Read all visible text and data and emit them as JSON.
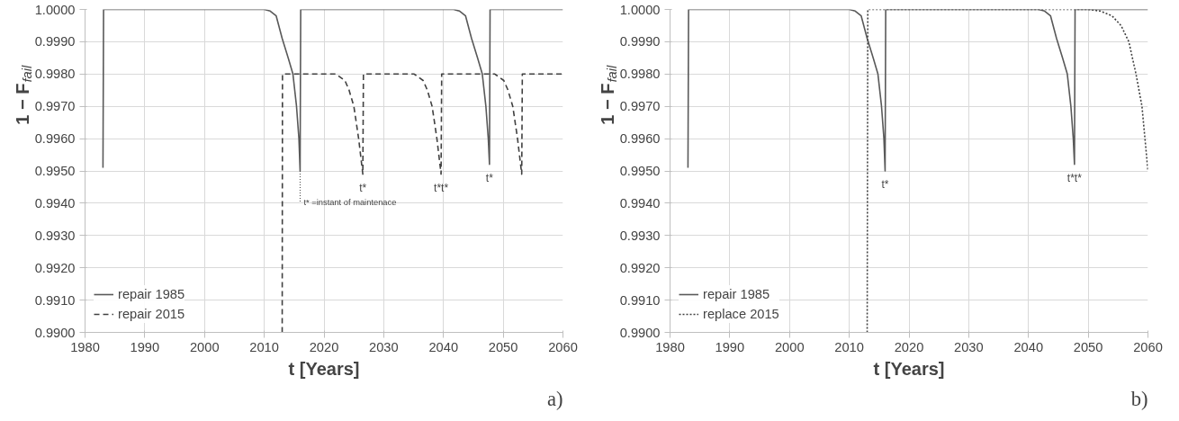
{
  "chart_data": [
    {
      "type": "line",
      "xlabel": "t [Years]",
      "ylabel": "1 − F$_{fail}$",
      "xlim": [
        1980,
        2060
      ],
      "ylim": [
        0.99,
        1.0
      ],
      "xticks": [
        1980,
        1990,
        2000,
        2010,
        2020,
        2030,
        2040,
        2050,
        2060
      ],
      "yticks": [
        {
          "value": 0.99,
          "label": "0.9900"
        },
        {
          "value": 0.991,
          "label": "0.9910"
        },
        {
          "value": 0.992,
          "label": "0.9920"
        },
        {
          "value": 0.993,
          "label": "0.9930"
        },
        {
          "value": 0.994,
          "label": "0.9940"
        },
        {
          "value": 0.995,
          "label": "0.9950"
        },
        {
          "value": 0.996,
          "label": "0.9960"
        },
        {
          "value": 0.997,
          "label": "0.9970"
        },
        {
          "value": 0.998,
          "label": "0.9980"
        },
        {
          "value": 0.999,
          "label": "0.9990"
        },
        {
          "value": 1.0,
          "label": "1.0000"
        }
      ],
      "grid": true,
      "legend": "bottom left",
      "marker": "none",
      "series": [
        {
          "name": "repair 1985",
          "color": "#595959",
          "line_style": "solid",
          "x": [
            1983,
            1983.1,
            2010,
            2011,
            2012,
            2013,
            2014,
            2014.8,
            2015.4,
            2015.8,
            2016,
            2016.1,
            2041.7,
            2042.7,
            2043.7,
            2044.7,
            2045.7,
            2046.5,
            2047.1,
            2047.5,
            2047.7,
            2047.8,
            2060
          ],
          "values": [
            0.9951,
            1.0,
            1.0,
            0.99995,
            0.9998,
            0.9991,
            0.9985,
            0.998,
            0.997,
            0.996,
            0.995,
            1.0,
            1.0,
            0.99995,
            0.9998,
            0.9991,
            0.9985,
            0.998,
            0.997,
            0.996,
            0.9952,
            1.0,
            1.0
          ]
        },
        {
          "name": "repair 2015",
          "color": "#404040",
          "line_style": "dashed",
          "x": [
            2013,
            2013.05,
            2022,
            2023.5,
            2024.2,
            2025,
            2025.8,
            2026.5,
            2026.6,
            2035.1,
            2036.6,
            2037.3,
            2038.1,
            2038.9,
            2039.6,
            2039.7,
            2048.6,
            2050.1,
            2050.8,
            2051.6,
            2052.4,
            2053.1,
            2053.2,
            2060
          ],
          "values": [
            0.99,
            0.998,
            0.998,
            0.9978,
            0.9975,
            0.997,
            0.996,
            0.9949,
            0.998,
            0.998,
            0.9978,
            0.9975,
            0.997,
            0.996,
            0.9949,
            0.998,
            0.998,
            0.9978,
            0.9975,
            0.997,
            0.996,
            0.9949,
            0.998,
            0.998
          ]
        }
      ],
      "annotations": [
        {
          "text": "t*",
          "x": 2026.5,
          "y": 0.9949
        },
        {
          "text": "t*t*",
          "x": 2039.6,
          "y": 0.9949
        },
        {
          "text": "t*",
          "x": 2047.7,
          "y": 0.9952
        },
        {
          "text": "t* =instant of maintenace",
          "x": 2016,
          "y": 0.995
        },
        "a)"
      ]
    },
    {
      "type": "line",
      "xlabel": "t [Years]",
      "ylabel": "1 − F$_{fail}$",
      "xlim": [
        1980,
        2060
      ],
      "ylim": [
        0.99,
        1.0
      ],
      "xticks": [
        1980,
        1990,
        2000,
        2010,
        2020,
        2030,
        2040,
        2050,
        2060
      ],
      "yticks": [
        {
          "value": 0.99,
          "label": "0.9900"
        },
        {
          "value": 0.991,
          "label": "0.9910"
        },
        {
          "value": 0.992,
          "label": "0.9920"
        },
        {
          "value": 0.993,
          "label": "0.9930"
        },
        {
          "value": 0.994,
          "label": "0.9940"
        },
        {
          "value": 0.995,
          "label": "0.9950"
        },
        {
          "value": 0.996,
          "label": "0.9960"
        },
        {
          "value": 0.997,
          "label": "0.9970"
        },
        {
          "value": 0.998,
          "label": "0.9980"
        },
        {
          "value": 0.999,
          "label": "0.9990"
        },
        {
          "value": 1.0,
          "label": "1.0000"
        }
      ],
      "grid": true,
      "legend": "bottom left",
      "marker": "none",
      "series": [
        {
          "name": "repair 1985",
          "color": "#595959",
          "line_style": "solid",
          "x": [
            1983,
            1983.1,
            2010,
            2011,
            2012,
            2013,
            2014,
            2014.8,
            2015.4,
            2015.8,
            2016,
            2016.1,
            2041.7,
            2042.7,
            2043.7,
            2044.7,
            2045.7,
            2046.5,
            2047.1,
            2047.5,
            2047.7,
            2047.8,
            2060
          ],
          "values": [
            0.9951,
            1.0,
            1.0,
            0.99995,
            0.9998,
            0.9991,
            0.9985,
            0.998,
            0.997,
            0.996,
            0.995,
            1.0,
            1.0,
            0.99995,
            0.9998,
            0.9991,
            0.9985,
            0.998,
            0.997,
            0.996,
            0.9952,
            1.0,
            1.0
          ]
        },
        {
          "name": "replace 2015",
          "color": "#404040",
          "line_style": "dotted",
          "x": [
            2013,
            2013.1,
            2050,
            2052,
            2054,
            2055.5,
            2056.8,
            2058,
            2059,
            2060
          ],
          "values": [
            0.99,
            1.0,
            1.0,
            0.99995,
            0.9998,
            0.9995,
            0.999,
            0.998,
            0.997,
            0.995
          ]
        }
      ],
      "annotations": [
        {
          "text": "t*",
          "x": 2016,
          "y": 0.995
        },
        {
          "text": "t*t*",
          "x": 2047.7,
          "y": 0.9952
        },
        "b)"
      ]
    }
  ]
}
